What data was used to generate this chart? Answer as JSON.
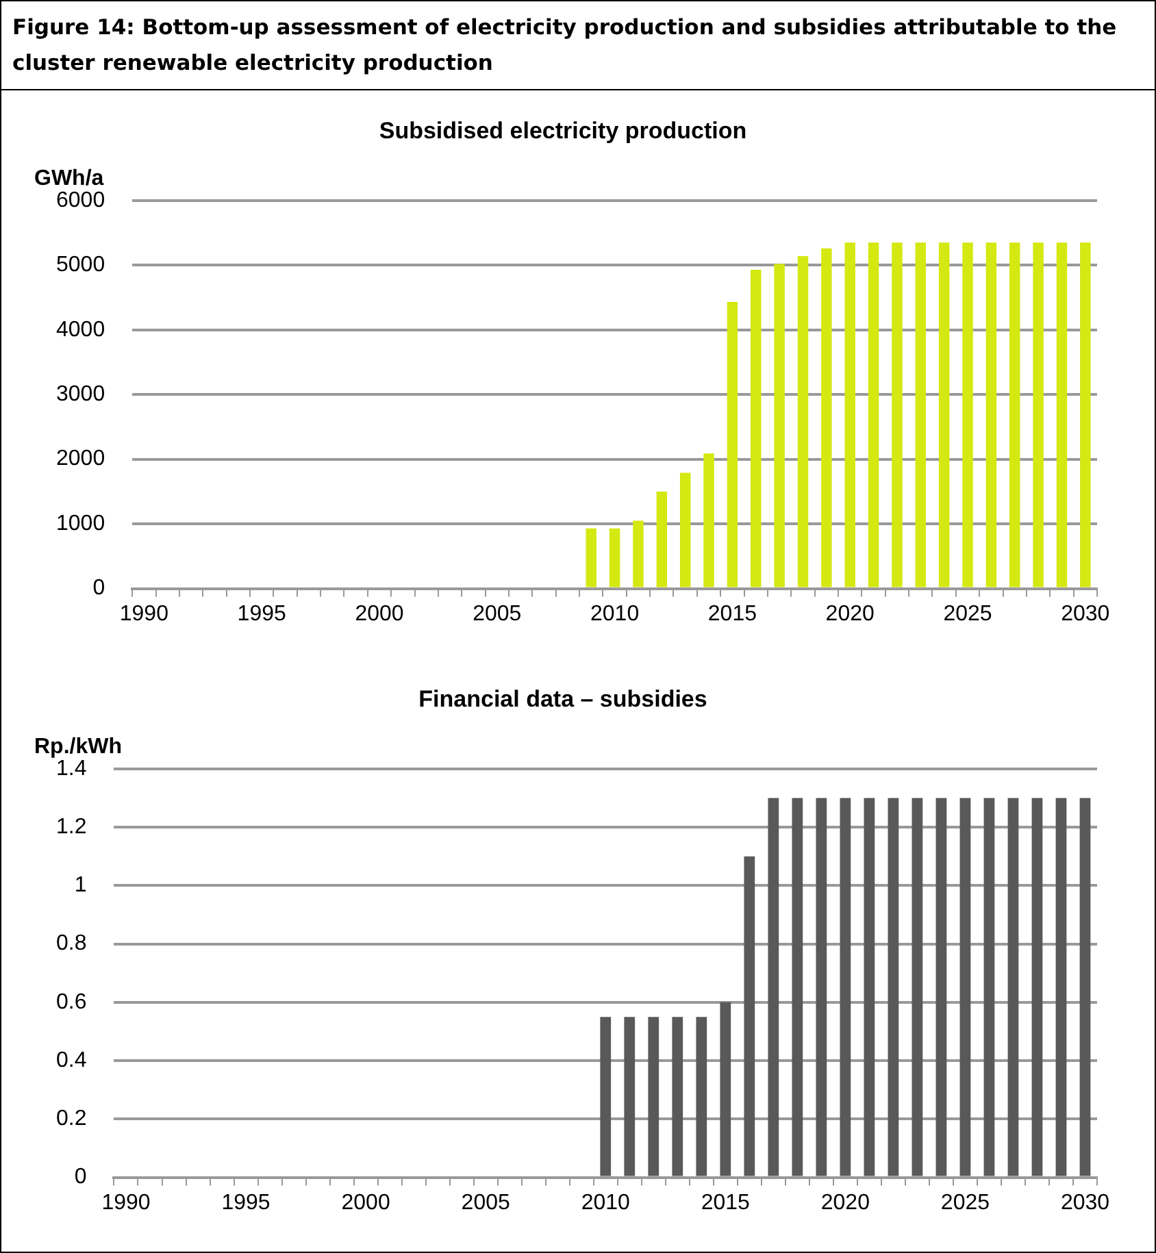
{
  "chart_data": [
    {
      "type": "bar",
      "title": "Figure 14: Bottom-up assessment of electricity production and subsidies attributable to the cluster renewable electricity production",
      "subtitle": "Subsidised electricity production",
      "ylabel": "GWh/a",
      "categories": [
        "1990",
        null,
        null,
        null,
        null,
        "1995",
        null,
        null,
        null,
        null,
        "2000",
        null,
        null,
        null,
        null,
        "2005",
        null,
        null,
        null,
        null,
        "2010",
        null,
        null,
        null,
        null,
        "2015",
        null,
        null,
        null,
        null,
        "2020",
        null,
        null,
        null,
        null,
        "2025",
        null,
        null,
        null,
        null,
        "2030"
      ],
      "values": [
        null,
        null,
        null,
        null,
        null,
        null,
        null,
        null,
        null,
        null,
        null,
        null,
        null,
        null,
        null,
        null,
        null,
        null,
        null,
        930,
        930,
        1050,
        1500,
        1790,
        2090,
        4430,
        4930,
        5020,
        5140,
        5260,
        5350,
        5350,
        5350,
        5350,
        5350,
        5350,
        5350,
        5350,
        5350,
        5350,
        5350
      ],
      "color": "#d4e811",
      "ylim": [
        0,
        6000
      ],
      "yticks": [
        0,
        1000,
        2000,
        3000,
        4000,
        5000,
        6000
      ],
      "grid": "y"
    },
    {
      "type": "bar",
      "title": "Financial data – subsidies",
      "ylabel": "Rp./kWh",
      "categories": [
        "1990",
        null,
        null,
        null,
        null,
        "1995",
        null,
        null,
        null,
        null,
        "2000",
        null,
        null,
        null,
        null,
        "2005",
        null,
        null,
        null,
        null,
        "2010",
        null,
        null,
        null,
        null,
        "2015",
        null,
        null,
        null,
        null,
        "2020",
        null,
        null,
        null,
        null,
        "2025",
        null,
        null,
        null,
        null,
        "2030"
      ],
      "values": [
        null,
        null,
        null,
        null,
        null,
        null,
        null,
        null,
        null,
        null,
        null,
        null,
        null,
        null,
        null,
        null,
        null,
        null,
        null,
        null,
        0.55,
        0.55,
        0.55,
        0.55,
        0.55,
        0.6,
        1.1,
        1.3,
        1.3,
        1.3,
        1.3,
        1.3,
        1.3,
        1.3,
        1.3,
        1.3,
        1.3,
        1.3,
        1.3,
        1.3,
        1.3
      ],
      "color": "#595959",
      "ylim": [
        0,
        1.4
      ],
      "yticks": [
        0,
        0.2,
        0.4,
        0.6,
        0.8,
        1,
        1.2,
        1.4
      ],
      "grid": "y"
    }
  ]
}
